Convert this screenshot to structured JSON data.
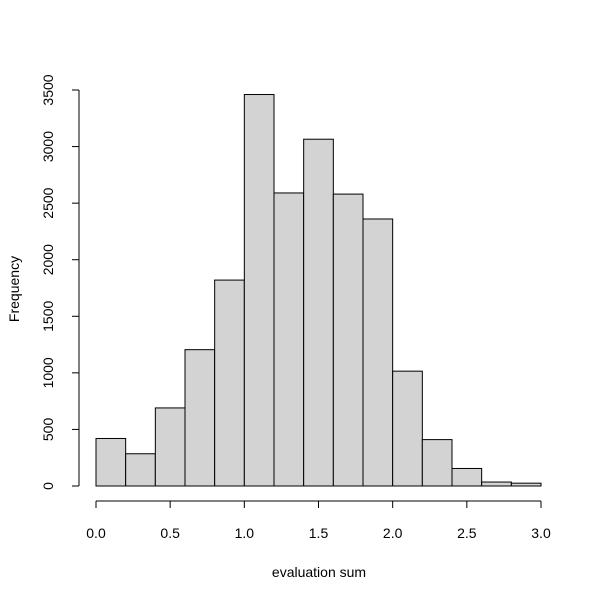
{
  "chart_data": {
    "type": "bar",
    "histogram": true,
    "title": "",
    "xlabel": "evaluation sum",
    "ylabel": "Frequency",
    "bin_edges": [
      0.0,
      0.2,
      0.4,
      0.6,
      0.8,
      1.0,
      1.2,
      1.4,
      1.6,
      1.8,
      2.0,
      2.2,
      2.4,
      2.6,
      2.8,
      3.0
    ],
    "values": [
      420,
      285,
      690,
      1205,
      1820,
      3460,
      2590,
      3065,
      2580,
      2360,
      1015,
      410,
      155,
      35,
      25
    ],
    "xlim": [
      0.0,
      3.0
    ],
    "ylim": [
      0,
      3500
    ],
    "x_ticks": [
      "0.0",
      "0.5",
      "1.0",
      "1.5",
      "2.0",
      "2.5",
      "3.0"
    ],
    "x_tick_values": [
      0.0,
      0.5,
      1.0,
      1.5,
      2.0,
      2.5,
      3.0
    ],
    "y_ticks": [
      "0",
      "500",
      "1000",
      "1500",
      "2000",
      "2500",
      "3000",
      "3500"
    ],
    "y_tick_values": [
      0,
      500,
      1000,
      1500,
      2000,
      2500,
      3000,
      3500
    ],
    "grid": false,
    "bar_fill": "#d3d3d3",
    "bar_stroke": "#000000"
  }
}
